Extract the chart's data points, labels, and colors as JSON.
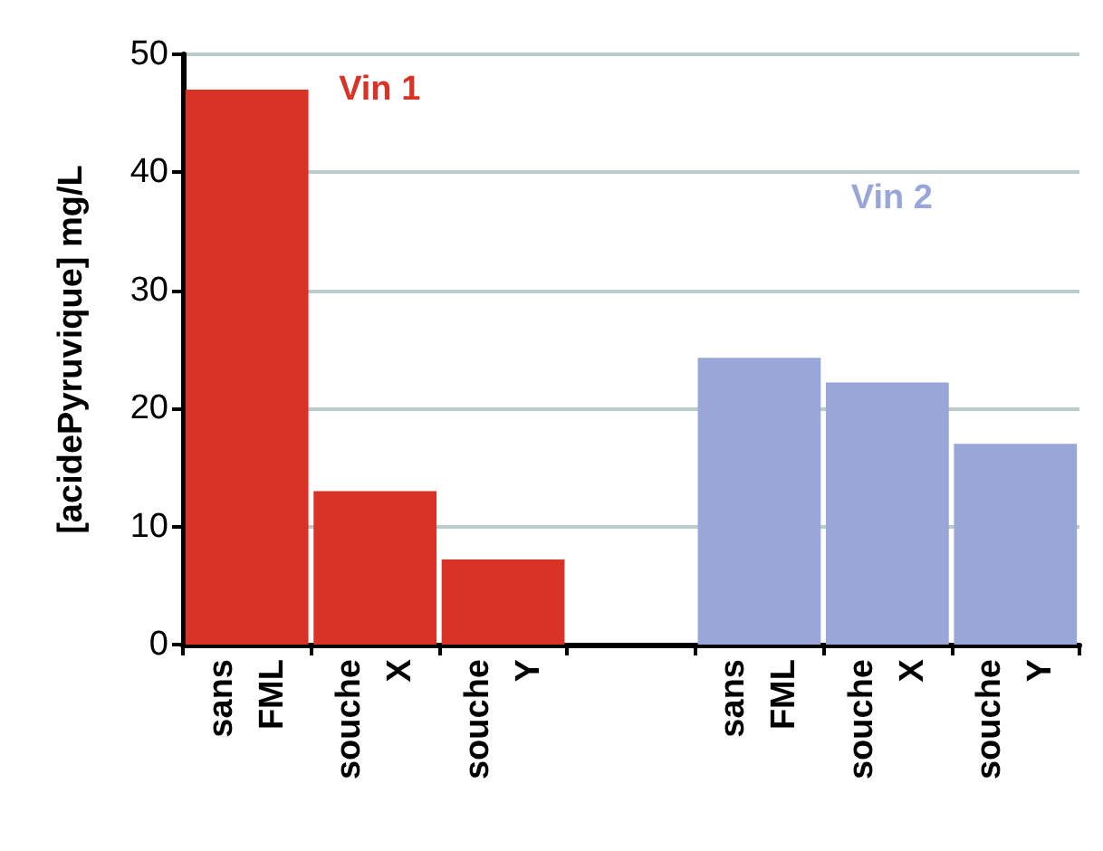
{
  "chart_data": {
    "type": "bar",
    "ylabel": "[acidePyruvique] mg/L",
    "categories": [
      "sans\nFML",
      "souche\nX",
      "souche\nY",
      null,
      "sans\nFML",
      "souche\nX",
      "souche\nY"
    ],
    "series": [
      {
        "name": "Vin 1",
        "color": "#d93327",
        "values": [
          47,
          13,
          7.2,
          null,
          null,
          null,
          null
        ]
      },
      {
        "name": "Vin 2",
        "color": "#98a6d8",
        "values": [
          null,
          null,
          null,
          null,
          24.3,
          22.2,
          17
        ]
      }
    ],
    "ylim": [
      0,
      50
    ],
    "yticks": [
      0,
      10,
      20,
      30,
      40,
      50
    ],
    "grid": "y",
    "legend": false
  }
}
